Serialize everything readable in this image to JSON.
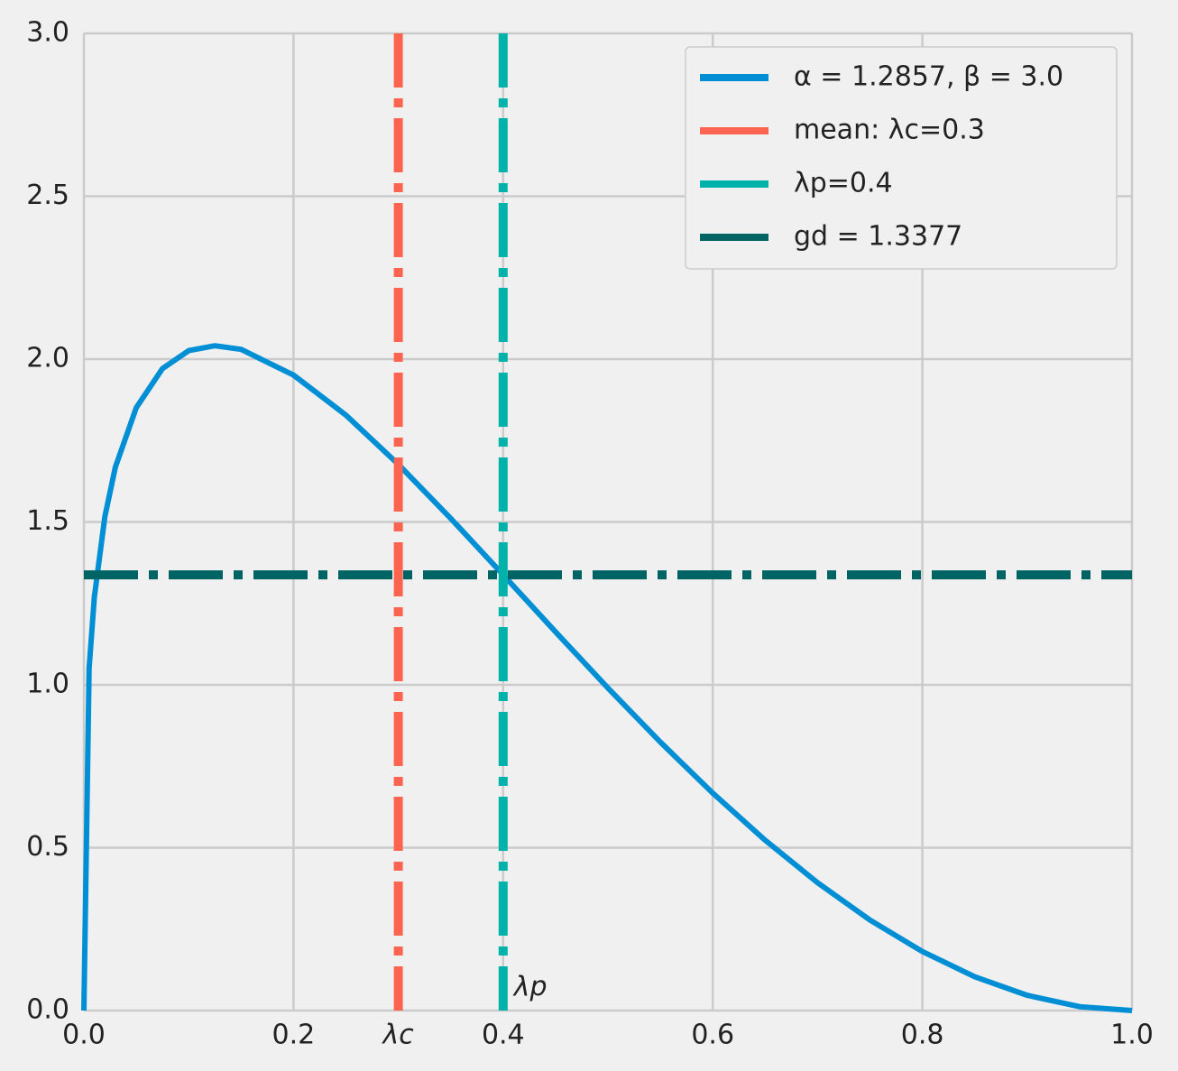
{
  "chart_data": {
    "type": "line",
    "x": [
      0,
      0.005,
      0.01,
      0.02,
      0.03,
      0.05,
      0.075,
      0.1,
      0.125,
      0.15,
      0.2,
      0.25,
      0.3,
      0.35,
      0.4,
      0.45,
      0.5,
      0.55,
      0.6,
      0.65,
      0.7,
      0.75,
      0.8,
      0.85,
      0.9,
      0.95,
      1.0
    ],
    "series": [
      {
        "name": "α = 1.2857, β = 3.0",
        "color": "#008fd5",
        "values": [
          0,
          1.052,
          1.27,
          1.516,
          1.668,
          1.851,
          1.971,
          2.026,
          2.041,
          2.03,
          1.951,
          1.828,
          1.677,
          1.511,
          1.3377,
          1.1625,
          0.9902,
          0.8242,
          0.6676,
          0.5229,
          0.3924,
          0.2779,
          0.1812,
          0.1037,
          0.0468,
          0.0119,
          0
        ]
      }
    ],
    "reference_lines": [
      {
        "name": "mean: λc=0.3",
        "color": "#fc6450",
        "orientation": "vertical",
        "value": 0.3
      },
      {
        "name": "λp=0.4",
        "color": "#00b2a9",
        "orientation": "vertical",
        "value": 0.4
      },
      {
        "name": "gd = 1.3377",
        "color": "#006464",
        "orientation": "horizontal",
        "value": 1.3377
      }
    ],
    "annotations": [
      {
        "text": "λc",
        "x": 0.3,
        "color": "#fc6450"
      },
      {
        "text": "λp",
        "x": 0.4,
        "color": "#00b2a9"
      }
    ],
    "xlim": [
      0,
      1
    ],
    "ylim": [
      0,
      3
    ],
    "xticks": [
      {
        "value": 0,
        "label": "0.0"
      },
      0.2,
      0.4,
      0.6,
      0.8,
      {
        "value": 1,
        "label": "1.0"
      }
    ],
    "yticks": [
      {
        "value": 0,
        "label": "0.0"
      },
      0.5,
      {
        "value": 1,
        "label": "1.0"
      },
      1.5,
      {
        "value": 2,
        "label": "2.0"
      },
      2.5,
      {
        "value": 3,
        "label": "3.0"
      }
    ],
    "grid": true,
    "legend": "upper right"
  }
}
